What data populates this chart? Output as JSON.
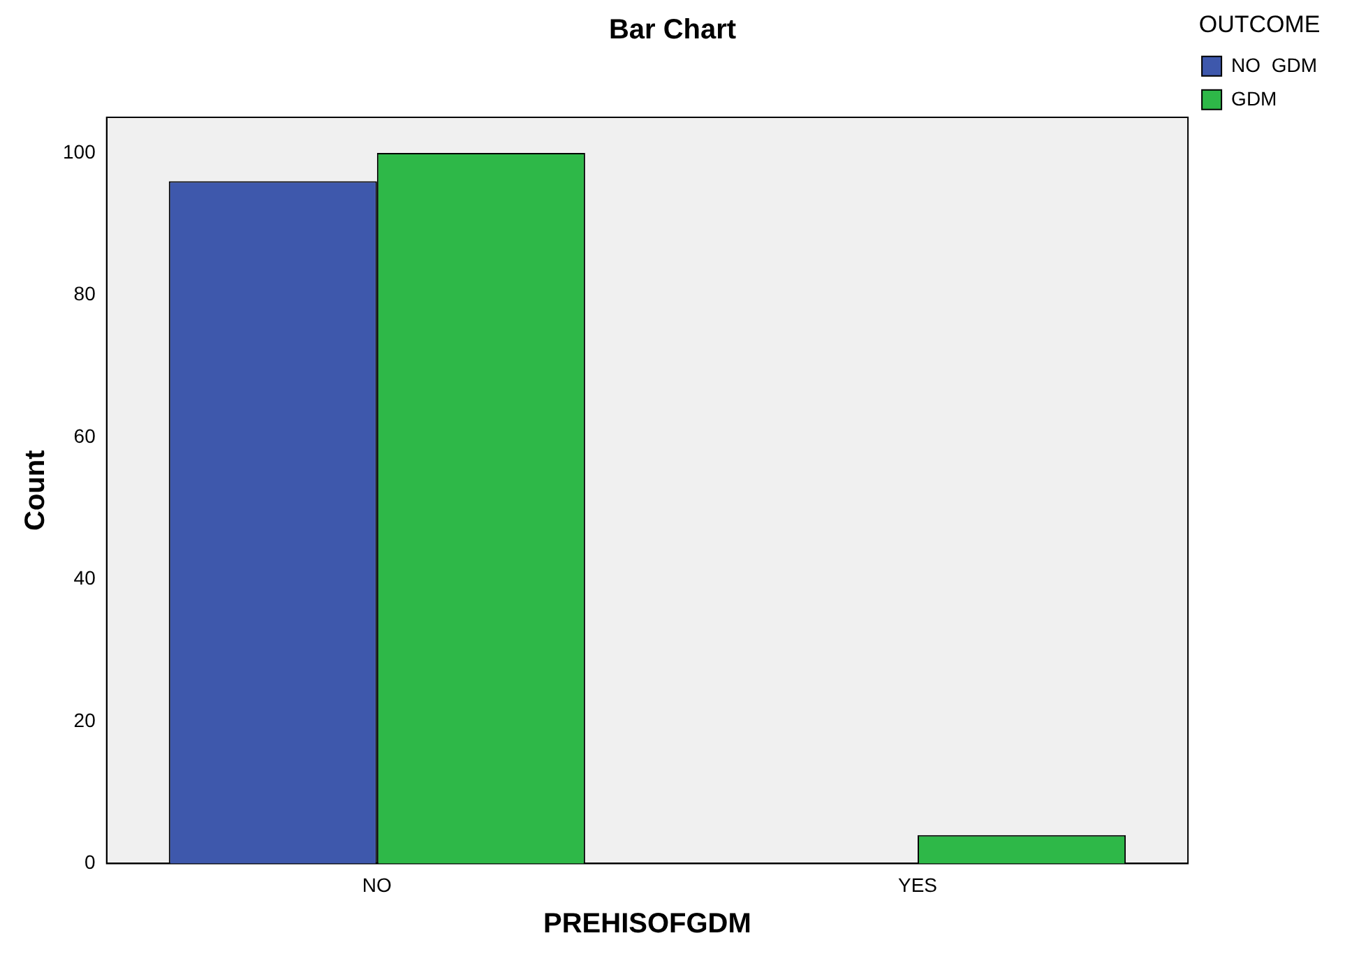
{
  "chart_data": {
    "type": "bar",
    "title": "Bar Chart",
    "xlabel": "PREHISOFGDM",
    "ylabel": "Count",
    "legend_title": "OUTCOME",
    "categories": [
      "NO",
      "YES"
    ],
    "series": [
      {
        "name": "NO  GDM",
        "color": "#3e58ac",
        "values": [
          96,
          0
        ]
      },
      {
        "name": "GDM",
        "color": "#2eb848",
        "values": [
          100,
          4
        ]
      }
    ],
    "ylim": [
      0,
      105
    ],
    "yticks": [
      0,
      20,
      40,
      60,
      80,
      100
    ],
    "grid": false,
    "legend": "top right"
  }
}
